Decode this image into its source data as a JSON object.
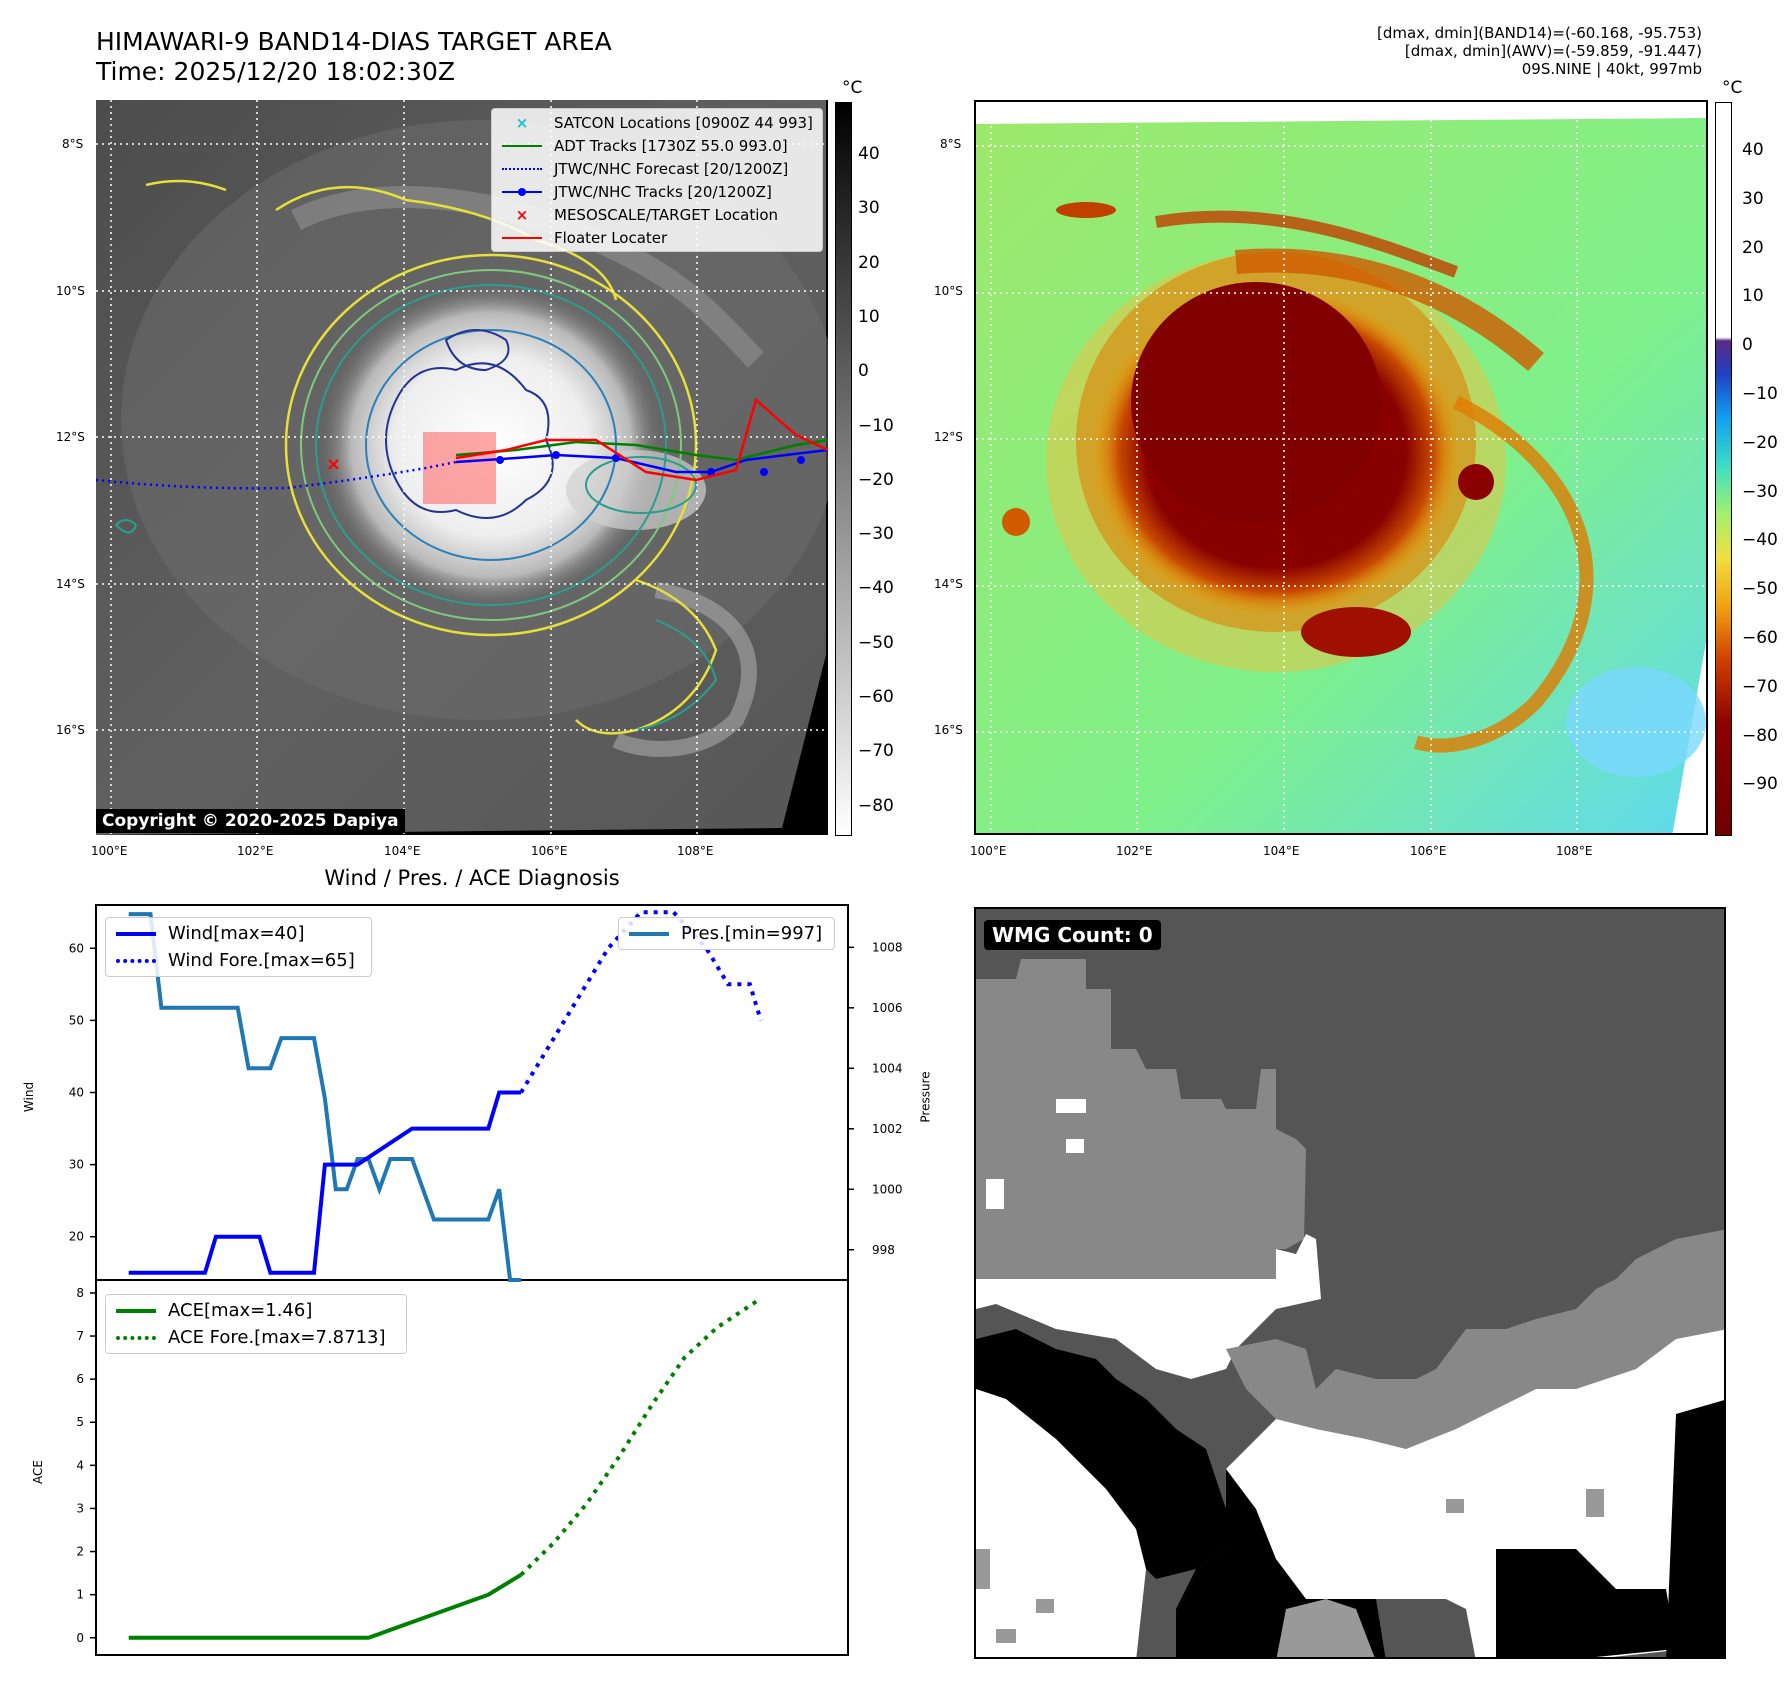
{
  "header": {
    "title_line1": "HIMAWARI-9 BAND14-DIAS TARGET AREA",
    "title_line2": "Time: 2025/12/20 18:02:30Z",
    "info_line1": "[dmax, dmin](BAND14)=(-60.168, -95.753)",
    "info_line2": "[dmax, dmin](AWV)=(-59.859, -91.447)",
    "info_line3": "09S.NINE | 40kt, 997mb"
  },
  "map_axes": {
    "lat_labels": [
      "8°S",
      "10°S",
      "12°S",
      "14°S",
      "16°S"
    ],
    "lon_labels": [
      "100°E",
      "102°E",
      "104°E",
      "106°E",
      "108°E"
    ]
  },
  "ir_panel": {
    "copyright": "Copyright © 2020-2025 Dapiya",
    "colorbar_unit": "°C",
    "colorbar_ticks": [
      "40",
      "30",
      "20",
      "10",
      "0",
      "−10",
      "−20",
      "−30",
      "−40",
      "−50",
      "−60",
      "−70",
      "−80"
    ],
    "legend": [
      {
        "label": "SATCON Locations [0900Z 44 993]",
        "color": "#17becf",
        "marker": "x"
      },
      {
        "label": "ADT Tracks [1730Z 55.0 993.0]",
        "color": "#008000",
        "marker": "line"
      },
      {
        "label": "JTWC/NHC Forecast [20/1200Z]",
        "color": "#0000ff",
        "marker": "dotted"
      },
      {
        "label": "JTWC/NHC Tracks [20/1200Z]",
        "color": "#0000ff",
        "marker": "line-dot"
      },
      {
        "label": "MESOSCALE/TARGET Location",
        "color": "#ff0000",
        "marker": "x"
      },
      {
        "label": "Floater Locater",
        "color": "#ff0000",
        "marker": "line"
      }
    ]
  },
  "color_panel": {
    "colorbar_unit": "°C",
    "colorbar_ticks": [
      "40",
      "30",
      "20",
      "10",
      "0",
      "−10",
      "−20",
      "−30",
      "−40",
      "−50",
      "−60",
      "−70",
      "−80",
      "−90"
    ]
  },
  "diagnosis": {
    "title": "Wind / Pres. / ACE Diagnosis",
    "wind_ylabel": "Wind",
    "pressure_ylabel": "Pressure",
    "ace_ylabel": "ACE",
    "wind_ticks": [
      "60",
      "50",
      "40",
      "30",
      "20"
    ],
    "pressure_ticks": [
      "1008",
      "1006",
      "1004",
      "1002",
      "1000",
      "998"
    ],
    "ace_ticks": [
      "8",
      "7",
      "6",
      "5",
      "4",
      "3",
      "2",
      "1",
      "0"
    ],
    "legend_wind": "Wind[max=40]",
    "legend_wind_fore": "Wind Fore.[max=65]",
    "legend_pres": "Pres.[min=997]",
    "legend_ace": "ACE[max=1.46]",
    "legend_ace_fore": "ACE Fore.[max=7.8713]"
  },
  "wmg_panel": {
    "label": "WMG Count: 0"
  },
  "chart_data": [
    {
      "type": "line",
      "title": "Wind / Pres. / ACE Diagnosis",
      "ylabel": "Wind",
      "ylim": [
        14,
        66
      ],
      "series": [
        {
          "name": "Wind[max=40]",
          "color": "#0000ff",
          "style": "solid",
          "x": [
            0,
            7,
            8,
            12,
            13,
            17,
            18,
            19,
            21,
            26,
            30,
            33,
            34,
            36
          ],
          "y": [
            15,
            15,
            20,
            20,
            15,
            15,
            30,
            30,
            30,
            35,
            35,
            35,
            40,
            40
          ]
        },
        {
          "name": "Wind Fore.[max=65]",
          "color": "#0000ff",
          "style": "dotted",
          "x": [
            36,
            40,
            44,
            47,
            50,
            53,
            55,
            57,
            58
          ],
          "y": [
            40,
            50,
            60,
            65,
            65,
            60,
            55,
            55,
            50
          ]
        }
      ]
    },
    {
      "type": "line",
      "ylabel": "Pressure",
      "ylim": [
        997,
        1009.4
      ],
      "series": [
        {
          "name": "Pres.[min=997]",
          "color": "#1f77b4",
          "style": "solid",
          "x": [
            0,
            2,
            3,
            10,
            11,
            13,
            14,
            17,
            18,
            19,
            20,
            21,
            22,
            23,
            24,
            26,
            28,
            29,
            31,
            33,
            34,
            35,
            36
          ],
          "y": [
            1009.1,
            1009.1,
            1006,
            1006,
            1004,
            1004,
            1005,
            1005,
            1003,
            1000,
            1000,
            1001,
            1001,
            1000,
            1001,
            1001,
            999,
            999,
            999,
            999,
            1000,
            997,
            997
          ]
        }
      ]
    },
    {
      "type": "line",
      "ylabel": "ACE",
      "ylim": [
        -0.4,
        8.3
      ],
      "series": [
        {
          "name": "ACE[max=1.46]",
          "color": "#008000",
          "style": "solid",
          "x": [
            0,
            22,
            33,
            36
          ],
          "y": [
            0,
            0,
            1.0,
            1.46
          ]
        },
        {
          "name": "ACE Fore.[max=7.8713]",
          "color": "#008000",
          "style": "dotted",
          "x": [
            36,
            39,
            42,
            45,
            48,
            51,
            54,
            58
          ],
          "y": [
            1.46,
            2.2,
            3.1,
            4.2,
            5.4,
            6.5,
            7.2,
            7.87
          ]
        }
      ]
    }
  ]
}
